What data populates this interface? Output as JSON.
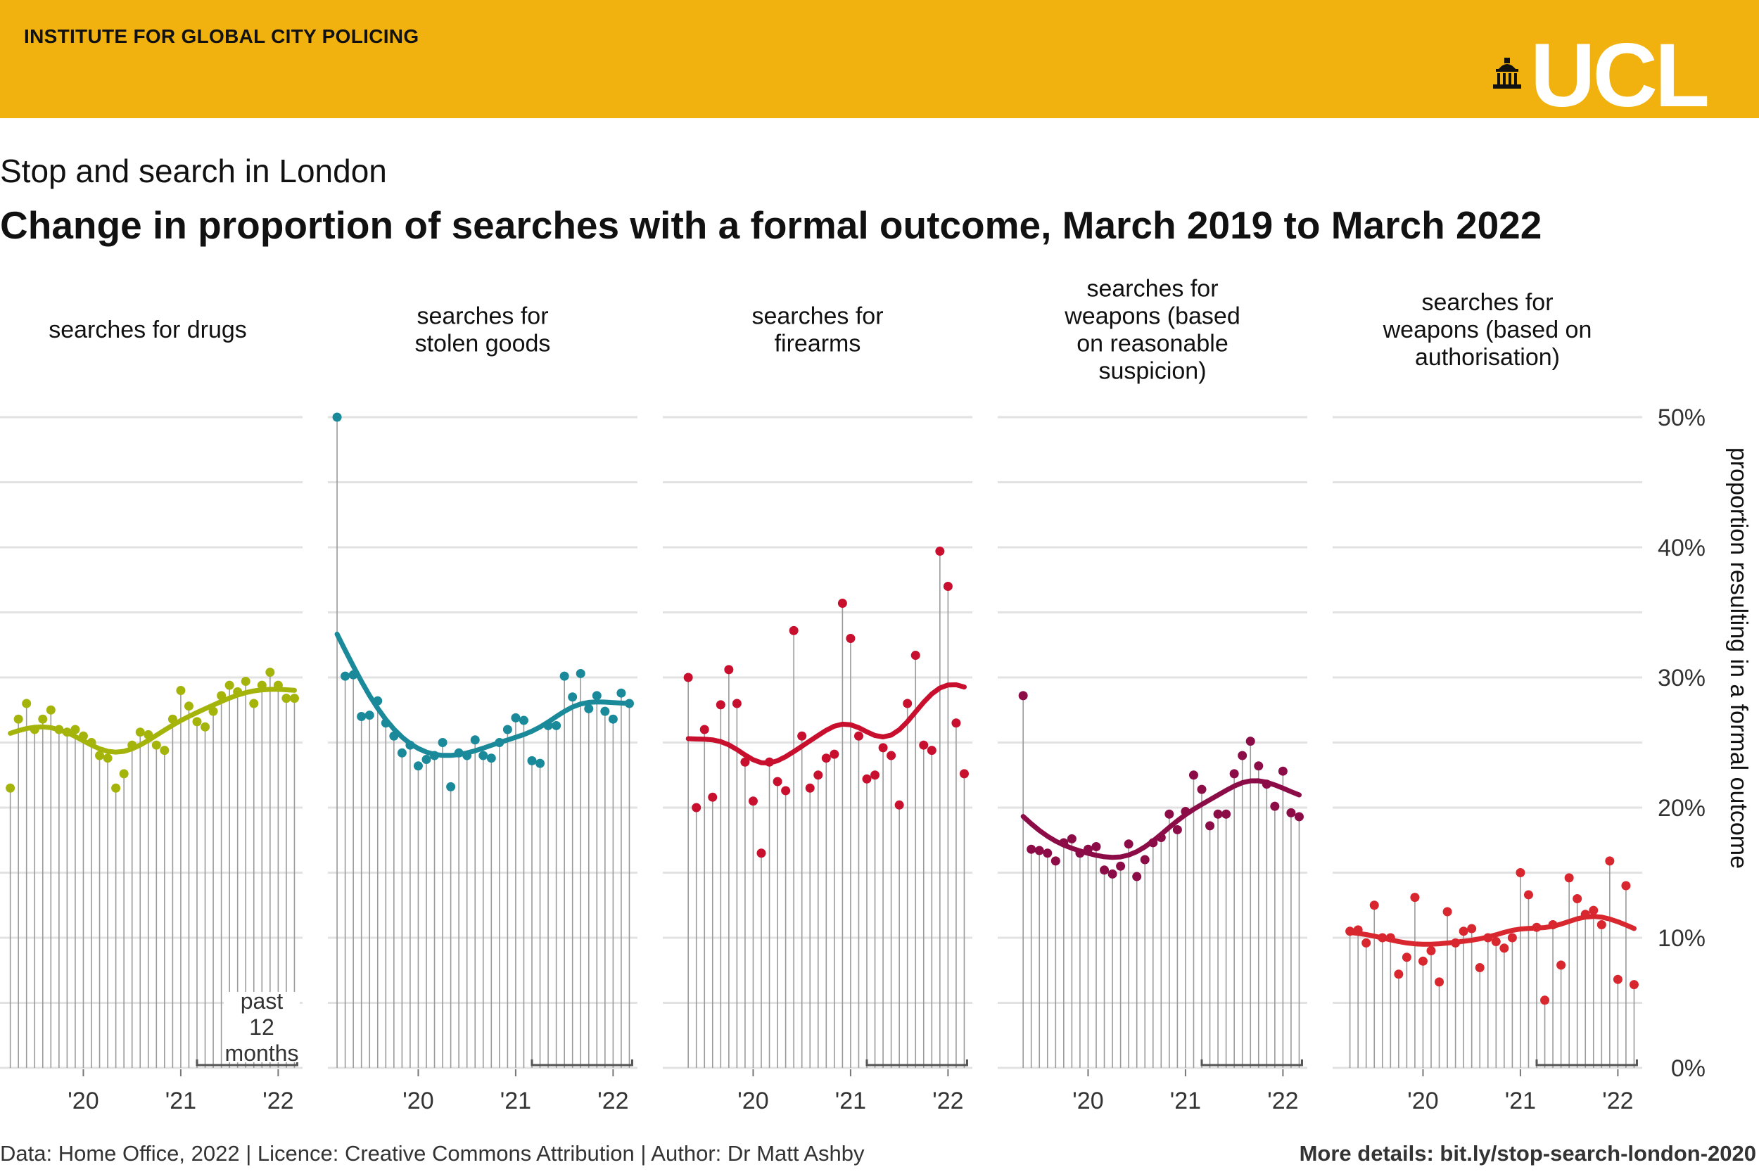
{
  "banner": {
    "institute": "INSTITUTE FOR GLOBAL CITY POLICING",
    "logo": "UCL",
    "logo_icon": "portico-icon"
  },
  "subtitle": "Stop and search in London",
  "title": "Change in proportion of searches with a formal outcome, March 2019 to March 2022",
  "footer": {
    "left": "Data: Home Office, 2022 | Licence: Creative Commons Attribution | Author: Dr Matt Ashby",
    "right": "More details: bit.ly/stop-search-london-2020"
  },
  "chart_data": {
    "type": "scatter",
    "x_start": "2019-03",
    "x_end": "2022-03",
    "x_ticks": [
      "'20",
      "'21",
      "'22"
    ],
    "y_ticks": [
      "0%",
      "10%",
      "20%",
      "30%",
      "40%",
      "50%"
    ],
    "ylim": [
      0,
      50
    ],
    "ylabel": "proportion resulting in a formal outcome",
    "annotation": [
      "past",
      "12",
      "months"
    ],
    "grid": true,
    "facets": [
      {
        "title": [
          "searches for drugs"
        ],
        "color": "#a5b40b",
        "values": [
          21.5,
          26.8,
          28.0,
          26.0,
          26.8,
          27.5,
          26.0,
          25.8,
          26.0,
          25.5,
          25.0,
          24.0,
          23.8,
          21.5,
          22.6,
          24.8,
          25.8,
          25.6,
          24.8,
          24.4,
          26.8,
          29.0,
          27.8,
          26.6,
          26.2,
          27.4,
          28.6,
          29.4,
          28.9,
          29.7,
          28.0,
          29.4,
          30.4,
          29.4,
          28.4,
          28.4
        ]
      },
      {
        "title": [
          "searches for",
          "stolen goods"
        ],
        "color": "#1a8a9a",
        "values": [
          50.0,
          30.1,
          30.2,
          27.0,
          27.1,
          28.2,
          26.5,
          25.5,
          24.2,
          24.8,
          23.2,
          23.7,
          24.0,
          25.0,
          21.6,
          24.2,
          24.0,
          25.2,
          24.0,
          23.8,
          25.0,
          26.0,
          26.9,
          26.7,
          23.6,
          23.4,
          26.3,
          26.3,
          30.1,
          28.5,
          30.3,
          27.6,
          28.6,
          27.4,
          26.8,
          28.8,
          28.0
        ]
      },
      {
        "title": [
          "searches for",
          "firearms"
        ],
        "color": "#c8102e",
        "values": [
          30.0,
          20.0,
          26.0,
          20.8,
          27.9,
          30.6,
          28.0,
          23.5,
          20.5,
          16.5,
          23.5,
          22.0,
          21.3,
          33.6,
          25.5,
          21.5,
          22.5,
          23.8,
          24.1,
          35.7,
          33.0,
          25.5,
          22.2,
          22.5,
          24.6,
          24.0,
          20.2,
          28.0,
          31.7,
          24.8,
          24.4,
          39.7,
          37.0,
          26.5,
          22.6
        ]
      },
      {
        "title": [
          "searches for",
          "weapons (based",
          "on reasonable",
          "suspicion)"
        ],
        "color": "#8b0c47",
        "values": [
          28.6,
          16.8,
          16.7,
          16.5,
          15.9,
          17.3,
          17.6,
          16.5,
          16.8,
          17.0,
          15.2,
          14.9,
          15.5,
          17.2,
          14.7,
          16.0,
          17.3,
          17.7,
          19.5,
          18.3,
          19.7,
          22.5,
          21.4,
          18.6,
          19.5,
          19.5,
          22.6,
          24.0,
          25.1,
          23.2,
          21.8,
          20.1,
          22.8,
          19.6,
          19.3
        ]
      },
      {
        "title": [
          "searches for",
          "weapons (based on",
          "authorisation)"
        ],
        "color": "#d8272e",
        "values": [
          10.5,
          10.6,
          9.6,
          12.5,
          10.0,
          10.0,
          7.2,
          8.5,
          13.1,
          8.2,
          9.0,
          6.6,
          12.0,
          9.6,
          10.5,
          10.7,
          7.7,
          10.0,
          9.7,
          9.2,
          10.0,
          15.0,
          13.3,
          10.8,
          5.2,
          11.0,
          7.9,
          14.6,
          13.0,
          11.8,
          12.1,
          11.0,
          15.9,
          6.8,
          14.0,
          6.4
        ]
      }
    ]
  }
}
